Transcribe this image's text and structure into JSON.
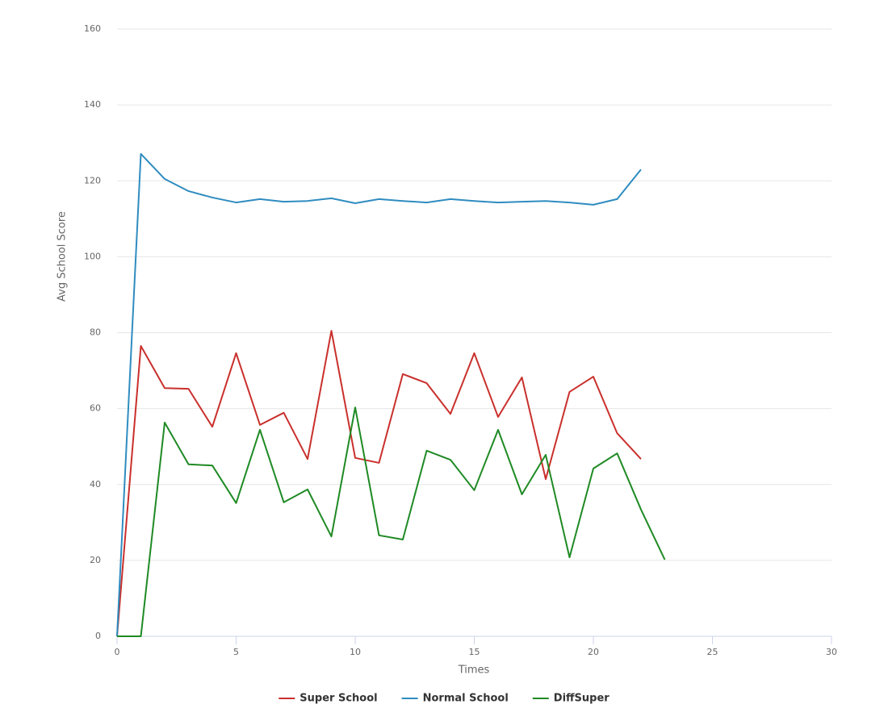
{
  "chart_data": {
    "type": "line",
    "x_label": "Times",
    "y_label": "Avg School Score",
    "x": [
      0,
      1,
      2,
      3,
      4,
      5,
      6,
      7,
      8,
      9,
      10,
      11,
      12,
      13,
      14,
      15,
      16,
      17,
      18,
      19,
      20,
      21,
      22,
      23
    ],
    "series": [
      {
        "name": "Super School",
        "color": "#c9302c",
        "values": [
          0,
          76.5,
          65.4,
          65.2,
          55.2,
          74.6,
          55.7,
          58.9,
          46.7,
          80.5,
          47.0,
          45.7,
          69.1,
          66.7,
          58.6,
          74.6,
          57.8,
          68.2,
          41.4,
          64.4,
          68.4,
          53.5,
          46.7,
          null
        ]
      },
      {
        "name": "Normal School",
        "color": "#2f8cc0",
        "values": [
          0,
          127.1,
          120.5,
          117.3,
          115.6,
          114.3,
          115.2,
          114.5,
          114.7,
          115.4,
          114.1,
          115.2,
          114.7,
          114.3,
          115.2,
          114.7,
          114.3,
          114.5,
          114.7,
          114.3,
          113.7,
          115.2,
          123.0,
          null
        ]
      },
      {
        "name": "DiffSuper",
        "color": "#1f8a24",
        "values": [
          0,
          0,
          56.3,
          45.3,
          45.0,
          35.1,
          54.4,
          35.3,
          38.7,
          26.3,
          60.3,
          26.6,
          25.5,
          48.9,
          46.5,
          38.5,
          54.4,
          37.4,
          47.8,
          20.8,
          44.2,
          48.2,
          33.4,
          20.2
        ]
      }
    ],
    "xlim": [
      0,
      30
    ],
    "xticks": [
      0,
      5,
      10,
      15,
      20,
      25,
      30
    ],
    "ylim": [
      0,
      160
    ],
    "yticks": [
      0,
      20,
      40,
      60,
      80,
      100,
      120,
      140,
      160
    ],
    "grid": true,
    "legend": "bottom"
  }
}
